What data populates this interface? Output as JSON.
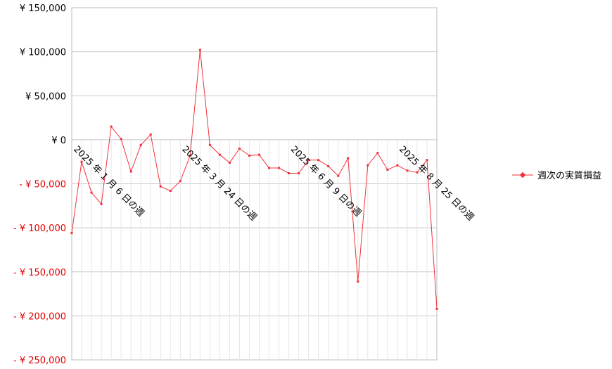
{
  "chart_data": {
    "type": "line",
    "title": "",
    "xlabel": "",
    "ylabel": "",
    "ylim": [
      -250000,
      150000
    ],
    "y_ticks": [
      150000,
      100000,
      50000,
      0,
      -50000,
      -100000,
      -150000,
      -200000,
      -250000
    ],
    "y_tick_labels": [
      "¥ 150,000",
      "¥ 100,000",
      "¥ 50,000",
      "¥ 0",
      "- ¥ 50,000",
      "- ¥ 100,000",
      "- ¥ 150,000",
      "- ¥ 200,000",
      "- ¥ 250,000"
    ],
    "x_tick_labels": [
      {
        "label": "2025 年 1 月 6 日の週",
        "index": 0
      },
      {
        "label": "2025 年 3 月 24 日の週",
        "index": 11
      },
      {
        "label": "2025 年 6 月 9 日の週",
        "index": 22
      },
      {
        "label": "2025 年 8 月 25 日の週",
        "index": 33
      }
    ],
    "grid": true,
    "legend": "right",
    "series": [
      {
        "name": "週次の実質損益",
        "color": "#f0323c",
        "values": [
          -106000,
          -25000,
          -60000,
          -73000,
          15000,
          1000,
          -36000,
          -6000,
          6000,
          -53000,
          -58000,
          -47000,
          -18000,
          102000,
          -6000,
          -17000,
          -26000,
          -10000,
          -18000,
          -17000,
          -32000,
          -32000,
          -38000,
          -38000,
          -23000,
          -23000,
          -30000,
          -41000,
          -21000,
          -161000,
          -29000,
          -15000,
          -34000,
          -29000,
          -35000,
          -37000,
          -23000,
          -192000
        ]
      }
    ]
  }
}
